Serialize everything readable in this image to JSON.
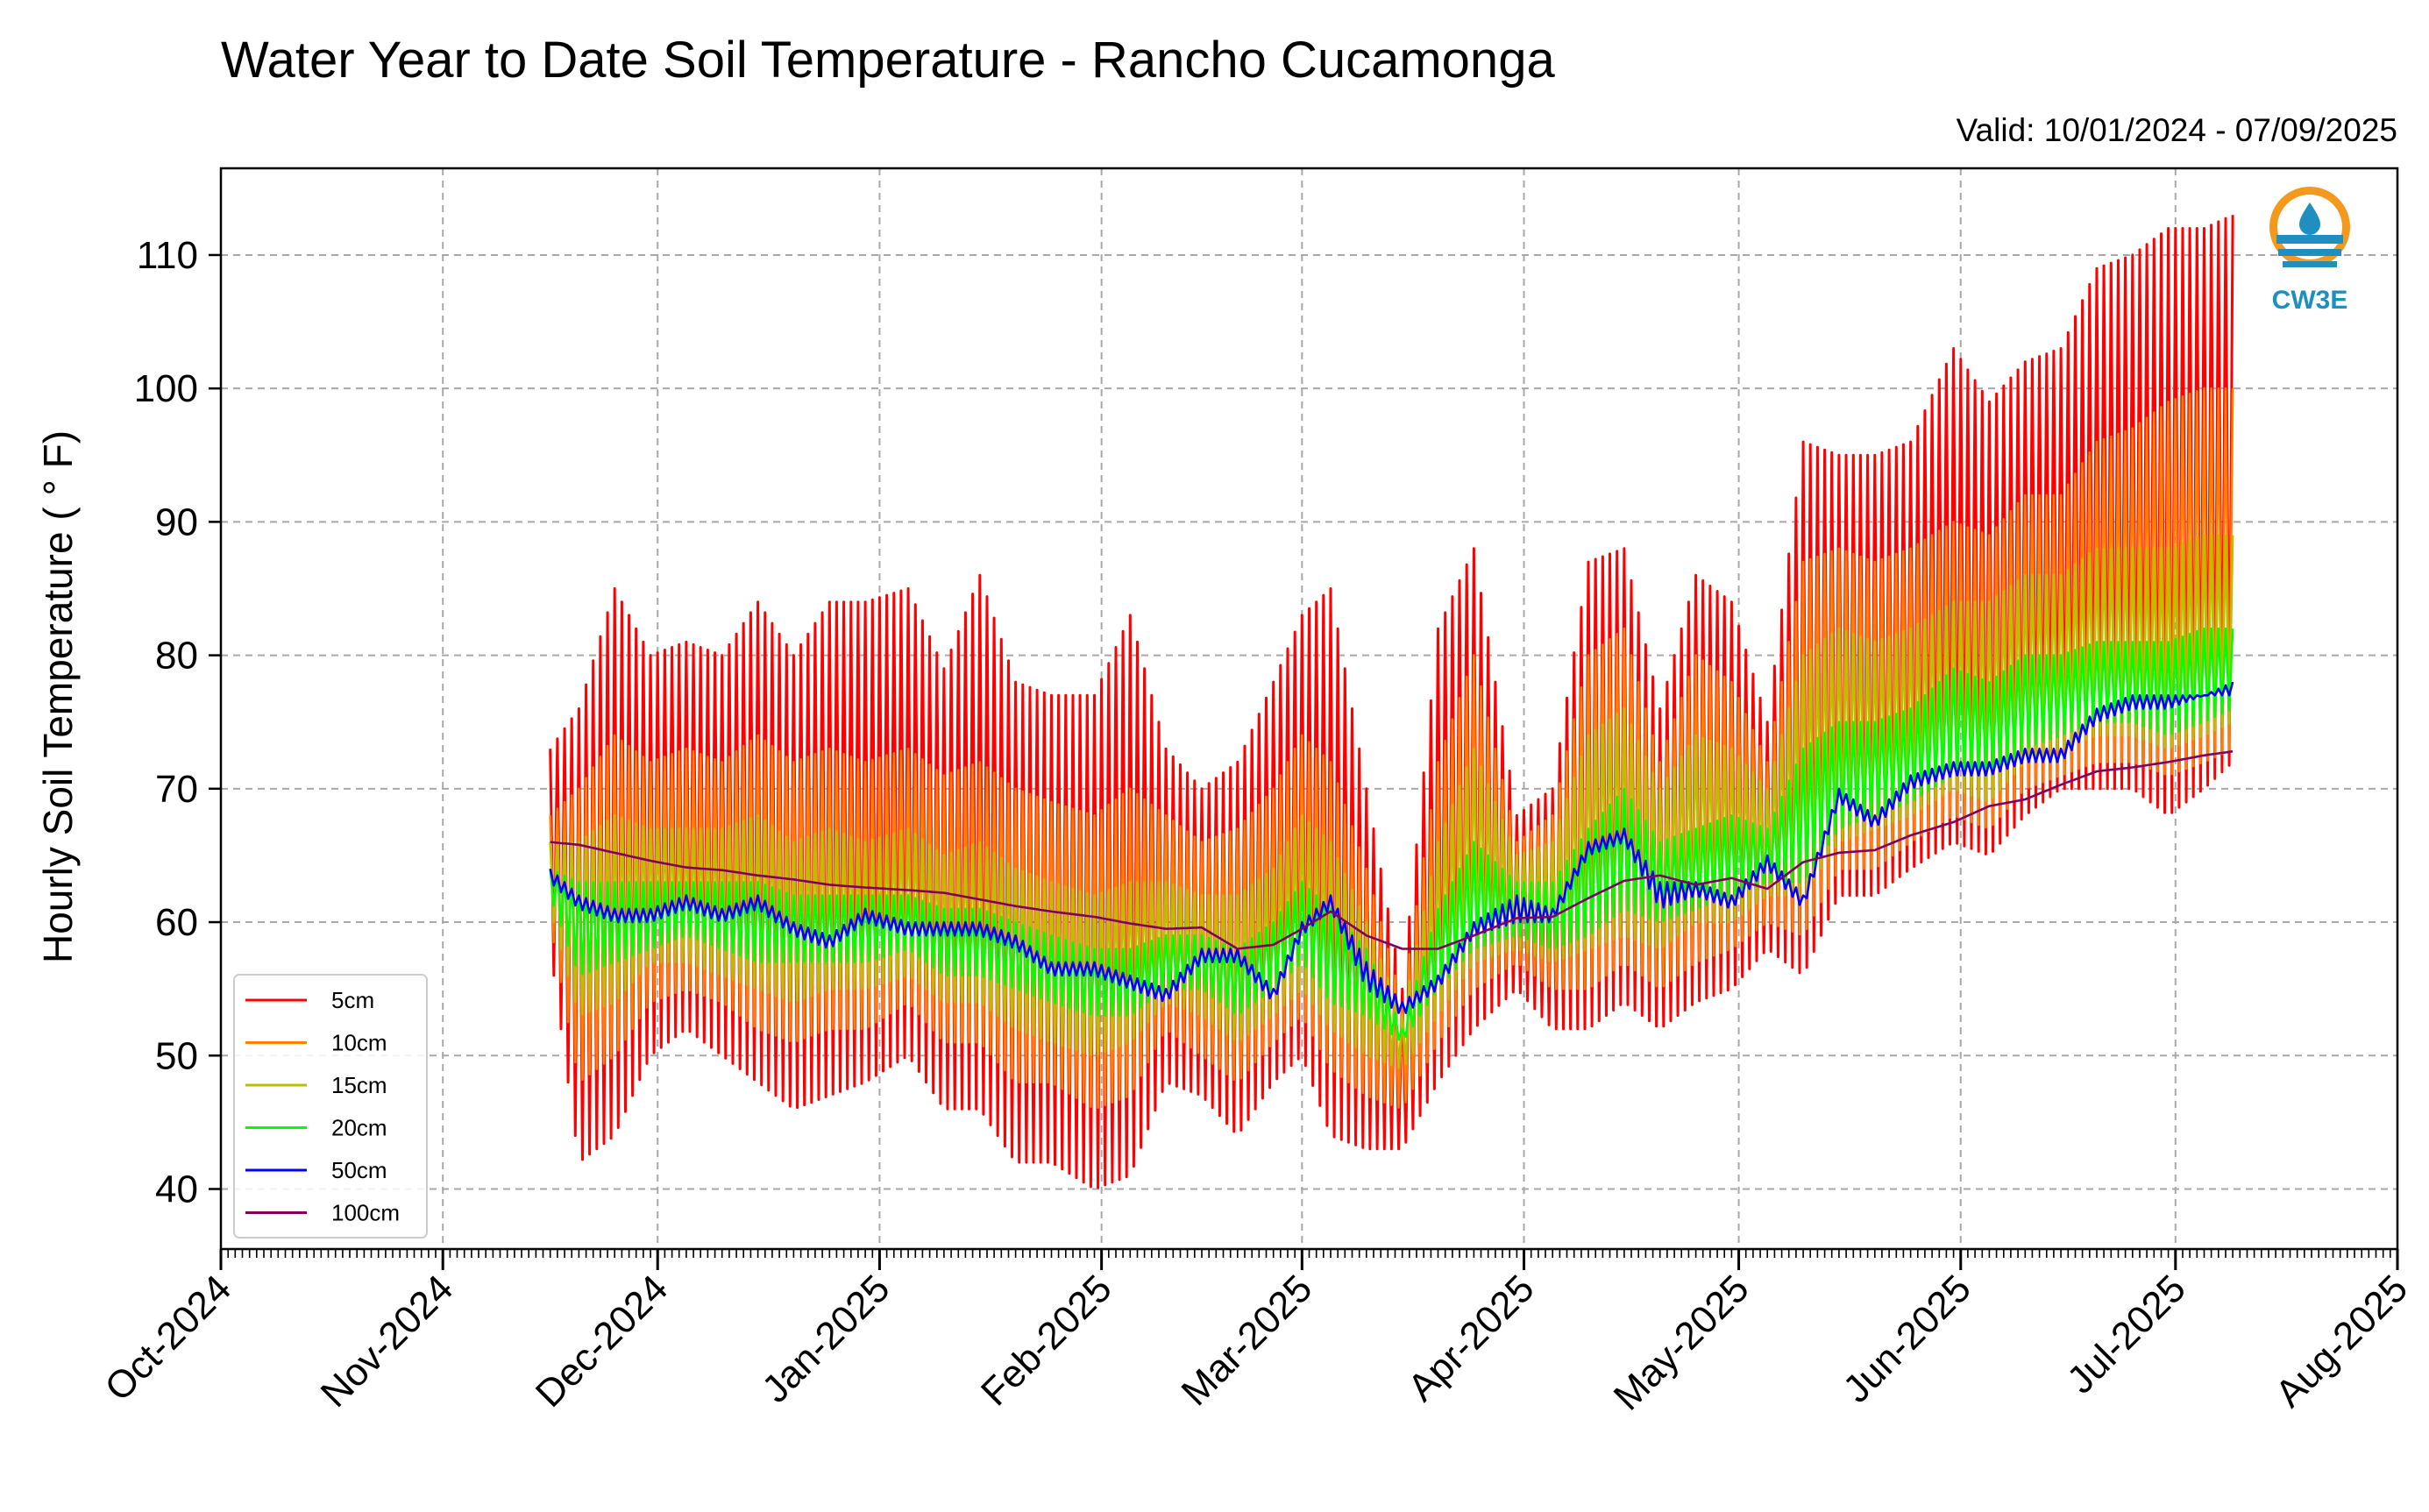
{
  "chart_data": {
    "type": "line",
    "title": "Water Year to Date Soil Temperature - Rancho Cucamonga",
    "valid_text": "Valid: 10/01/2024 - 07/09/2025",
    "ylabel": "Hourly Soil Temperature ( ° F)",
    "xlabel": "",
    "xlim": [
      "2024-10-01",
      "2025-08-01"
    ],
    "ylim": [
      35.5,
      116.5
    ],
    "y_ticks": [
      40,
      50,
      60,
      70,
      80,
      90,
      100,
      110
    ],
    "x_ticks": [
      {
        "date": "2024-10-01",
        "label": "Oct-2024"
      },
      {
        "date": "2024-11-01",
        "label": "Nov-2024"
      },
      {
        "date": "2024-12-01",
        "label": "Dec-2024"
      },
      {
        "date": "2025-01-01",
        "label": "Jan-2025"
      },
      {
        "date": "2025-02-01",
        "label": "Feb-2025"
      },
      {
        "date": "2025-03-01",
        "label": "Mar-2025"
      },
      {
        "date": "2025-04-01",
        "label": "Apr-2025"
      },
      {
        "date": "2025-05-01",
        "label": "May-2025"
      },
      {
        "date": "2025-06-01",
        "label": "Jun-2025"
      },
      {
        "date": "2025-07-01",
        "label": "Jul-2025"
      },
      {
        "date": "2025-08-01",
        "label": "Aug-2025"
      }
    ],
    "grid": true,
    "legend_position": "lower-left",
    "series_style": "daily max/min envelope (hourly oscillation drawn as zig-zag)",
    "series": [
      {
        "name": "5cm",
        "color": "#ff0000",
        "dates": [
          "2024-11-16",
          "2024-11-20",
          "2024-11-25",
          "2024-11-30",
          "2024-12-05",
          "2024-12-10",
          "2024-12-15",
          "2024-12-20",
          "2024-12-25",
          "2024-12-30",
          "2025-01-05",
          "2025-01-10",
          "2025-01-15",
          "2025-01-20",
          "2025-01-25",
          "2025-01-31",
          "2025-02-05",
          "2025-02-10",
          "2025-02-15",
          "2025-02-20",
          "2025-02-25",
          "2025-03-01",
          "2025-03-05",
          "2025-03-10",
          "2025-03-15",
          "2025-03-20",
          "2025-03-25",
          "2025-03-31",
          "2025-04-05",
          "2025-04-10",
          "2025-04-15",
          "2025-04-20",
          "2025-04-25",
          "2025-04-30",
          "2025-05-05",
          "2025-05-10",
          "2025-05-15",
          "2025-05-20",
          "2025-05-25",
          "2025-05-31",
          "2025-06-05",
          "2025-06-10",
          "2025-06-15",
          "2025-06-20",
          "2025-06-25",
          "2025-06-30",
          "2025-07-05",
          "2025-07-09"
        ],
        "max": [
          73,
          76,
          85,
          80,
          81,
          80,
          84,
          80,
          84,
          84,
          85,
          79,
          86,
          78,
          77,
          77,
          83,
          73,
          70,
          72,
          78,
          83,
          85,
          70,
          55,
          82,
          88,
          68,
          70,
          87,
          88,
          76,
          86,
          84,
          75,
          96,
          95,
          95,
          96,
          103,
          99,
          102,
          103,
          109,
          110,
          112,
          112,
          113
        ],
        "min": [
          58,
          42,
          44,
          50,
          52,
          50,
          48,
          46,
          47,
          48,
          50,
          46,
          46,
          42,
          42,
          40,
          41,
          48,
          47,
          44,
          48,
          50,
          44,
          43,
          43,
          48,
          52,
          55,
          52,
          52,
          54,
          52,
          54,
          55,
          58,
          56,
          62,
          62,
          64,
          66,
          65,
          68,
          70,
          70,
          70,
          68,
          70,
          72
        ]
      },
      {
        "name": "10cm",
        "color": "#ff8000",
        "dates": [
          "2024-11-16",
          "2024-11-20",
          "2024-11-25",
          "2024-11-30",
          "2024-12-05",
          "2024-12-10",
          "2024-12-15",
          "2024-12-20",
          "2024-12-25",
          "2024-12-30",
          "2025-01-05",
          "2025-01-10",
          "2025-01-15",
          "2025-01-20",
          "2025-01-25",
          "2025-01-31",
          "2025-02-05",
          "2025-02-10",
          "2025-02-15",
          "2025-02-20",
          "2025-02-25",
          "2025-03-01",
          "2025-03-05",
          "2025-03-10",
          "2025-03-15",
          "2025-03-20",
          "2025-03-25",
          "2025-03-31",
          "2025-04-05",
          "2025-04-10",
          "2025-04-15",
          "2025-04-20",
          "2025-04-25",
          "2025-04-30",
          "2025-05-05",
          "2025-05-10",
          "2025-05-15",
          "2025-05-20",
          "2025-05-25",
          "2025-05-31",
          "2025-06-05",
          "2025-06-10",
          "2025-06-15",
          "2025-06-20",
          "2025-06-25",
          "2025-06-30",
          "2025-07-05",
          "2025-07-09"
        ],
        "max": [
          68,
          70,
          74,
          72,
          73,
          72,
          74,
          72,
          73,
          72,
          73,
          71,
          72,
          70,
          69,
          68,
          70,
          68,
          66,
          67,
          70,
          74,
          72,
          64,
          54,
          72,
          80,
          66,
          68,
          80,
          82,
          72,
          80,
          78,
          72,
          87,
          88,
          87,
          88,
          90,
          89,
          92,
          92,
          96,
          97,
          99,
          100,
          100
        ],
        "min": [
          60,
          48,
          50,
          54,
          55,
          54,
          52,
          51,
          52,
          52,
          54,
          51,
          51,
          48,
          48,
          46,
          47,
          52,
          50,
          48,
          51,
          53,
          49,
          47,
          46,
          51,
          55,
          57,
          55,
          55,
          57,
          55,
          57,
          58,
          60,
          59,
          64,
          64,
          66,
          68,
          67,
          70,
          71,
          72,
          72,
          71,
          72,
          73
        ]
      },
      {
        "name": "15cm",
        "color": "#b8c000",
        "dates": [
          "2024-11-16",
          "2024-11-20",
          "2024-11-25",
          "2024-11-30",
          "2024-12-05",
          "2024-12-10",
          "2024-12-15",
          "2024-12-20",
          "2024-12-25",
          "2024-12-30",
          "2025-01-05",
          "2025-01-10",
          "2025-01-15",
          "2025-01-20",
          "2025-01-25",
          "2025-01-31",
          "2025-02-05",
          "2025-02-10",
          "2025-02-15",
          "2025-02-20",
          "2025-02-25",
          "2025-03-01",
          "2025-03-05",
          "2025-03-10",
          "2025-03-15",
          "2025-03-20",
          "2025-03-25",
          "2025-03-31",
          "2025-04-05",
          "2025-04-10",
          "2025-04-15",
          "2025-04-20",
          "2025-04-25",
          "2025-04-30",
          "2025-05-05",
          "2025-05-10",
          "2025-05-15",
          "2025-05-20",
          "2025-05-25",
          "2025-05-31",
          "2025-06-05",
          "2025-06-10",
          "2025-06-15",
          "2025-06-20",
          "2025-06-25",
          "2025-06-30",
          "2025-07-05",
          "2025-07-09"
        ],
        "max": [
          66,
          66,
          68,
          67,
          67,
          67,
          68,
          66,
          67,
          66,
          67,
          65,
          66,
          64,
          63,
          62,
          63,
          63,
          62,
          62,
          64,
          68,
          66,
          60,
          53,
          66,
          73,
          65,
          66,
          74,
          76,
          70,
          74,
          73,
          70,
          80,
          82,
          81,
          82,
          84,
          84,
          86,
          86,
          88,
          88,
          88,
          89,
          89
        ],
        "min": [
          61,
          53,
          54,
          57,
          57,
          56,
          55,
          54,
          55,
          55,
          56,
          54,
          54,
          52,
          51,
          50,
          51,
          54,
          53,
          51,
          53,
          55,
          52,
          50,
          49,
          53,
          57,
          58,
          57,
          58,
          59,
          58,
          60,
          60,
          62,
          62,
          66,
          67,
          68,
          70,
          69,
          72,
          73,
          74,
          74,
          73,
          74,
          75
        ]
      },
      {
        "name": "20cm",
        "color": "#00ff00",
        "dates": [
          "2024-11-16",
          "2024-11-20",
          "2024-11-25",
          "2024-11-30",
          "2024-12-05",
          "2024-12-10",
          "2024-12-15",
          "2024-12-20",
          "2024-12-25",
          "2024-12-30",
          "2025-01-05",
          "2025-01-10",
          "2025-01-15",
          "2025-01-20",
          "2025-01-25",
          "2025-01-31",
          "2025-02-05",
          "2025-02-10",
          "2025-02-15",
          "2025-02-20",
          "2025-02-25",
          "2025-03-01",
          "2025-03-05",
          "2025-03-10",
          "2025-03-15",
          "2025-03-20",
          "2025-03-25",
          "2025-03-31",
          "2025-04-05",
          "2025-04-10",
          "2025-04-15",
          "2025-04-20",
          "2025-04-25",
          "2025-04-30",
          "2025-05-05",
          "2025-05-10",
          "2025-05-15",
          "2025-05-20",
          "2025-05-25",
          "2025-05-31",
          "2025-06-05",
          "2025-06-10",
          "2025-06-15",
          "2025-06-20",
          "2025-06-25",
          "2025-06-30",
          "2025-07-05",
          "2025-07-09"
        ],
        "max": [
          64,
          63,
          63,
          63,
          63,
          63,
          63,
          62,
          62,
          62,
          62,
          61,
          61,
          60,
          59,
          58,
          58,
          59,
          59,
          58,
          60,
          63,
          61,
          58,
          52,
          61,
          66,
          63,
          63,
          67,
          70,
          66,
          67,
          68,
          67,
          73,
          75,
          75,
          76,
          79,
          78,
          80,
          80,
          81,
          81,
          81,
          82,
          82
        ],
        "min": [
          62,
          56,
          57,
          58,
          59,
          58,
          57,
          57,
          57,
          57,
          58,
          56,
          56,
          55,
          54,
          53,
          53,
          55,
          55,
          53,
          55,
          57,
          54,
          53,
          51,
          55,
          58,
          59,
          58,
          59,
          61,
          60,
          61,
          62,
          63,
          63,
          67,
          68,
          69,
          71,
          71,
          73,
          74,
          75,
          75,
          74,
          75,
          76
        ]
      },
      {
        "name": "50cm",
        "color": "#0000ff",
        "dates": [
          "2024-11-16",
          "2024-11-20",
          "2024-11-25",
          "2024-11-30",
          "2024-12-05",
          "2024-12-10",
          "2024-12-15",
          "2024-12-20",
          "2024-12-25",
          "2024-12-30",
          "2025-01-05",
          "2025-01-10",
          "2025-01-15",
          "2025-01-20",
          "2025-01-25",
          "2025-01-31",
          "2025-02-05",
          "2025-02-10",
          "2025-02-15",
          "2025-02-20",
          "2025-02-25",
          "2025-03-01",
          "2025-03-05",
          "2025-03-10",
          "2025-03-15",
          "2025-03-20",
          "2025-03-25",
          "2025-03-31",
          "2025-04-05",
          "2025-04-10",
          "2025-04-15",
          "2025-04-20",
          "2025-04-25",
          "2025-04-30",
          "2025-05-05",
          "2025-05-10",
          "2025-05-15",
          "2025-05-20",
          "2025-05-25",
          "2025-05-31",
          "2025-06-05",
          "2025-06-10",
          "2025-06-15",
          "2025-06-20",
          "2025-06-25",
          "2025-06-30",
          "2025-07-05",
          "2025-07-09"
        ],
        "max": [
          64,
          62,
          61,
          61,
          62,
          61,
          62,
          60,
          59,
          61,
          60,
          60,
          60,
          59,
          57,
          57,
          56,
          55,
          58,
          58,
          55,
          60,
          62,
          57,
          54,
          56,
          60,
          62,
          61,
          66,
          67,
          63,
          63,
          62,
          65,
          62,
          70,
          68,
          71,
          72,
          72,
          73,
          73,
          76,
          77,
          77,
          77,
          78
        ],
        "min": [
          63,
          61,
          60,
          60,
          61,
          60,
          61,
          59,
          58,
          60,
          59,
          59,
          59,
          58,
          56,
          56,
          55,
          54,
          57,
          57,
          54,
          59,
          61,
          55,
          53,
          55,
          59,
          60,
          60,
          65,
          66,
          61,
          62,
          61,
          64,
          61,
          69,
          67,
          70,
          71,
          71,
          72,
          72,
          75,
          76,
          76,
          77,
          77
        ]
      },
      {
        "name": "100cm",
        "color": "#800060",
        "dates": [
          "2024-11-16",
          "2024-11-20",
          "2024-11-25",
          "2024-11-30",
          "2024-12-05",
          "2024-12-10",
          "2024-12-15",
          "2024-12-20",
          "2024-12-25",
          "2024-12-30",
          "2025-01-05",
          "2025-01-10",
          "2025-01-15",
          "2025-01-20",
          "2025-01-25",
          "2025-01-31",
          "2025-02-05",
          "2025-02-10",
          "2025-02-15",
          "2025-02-20",
          "2025-02-25",
          "2025-03-01",
          "2025-03-05",
          "2025-03-10",
          "2025-03-15",
          "2025-03-20",
          "2025-03-25",
          "2025-03-31",
          "2025-04-05",
          "2025-04-10",
          "2025-04-15",
          "2025-04-20",
          "2025-04-25",
          "2025-04-30",
          "2025-05-05",
          "2025-05-10",
          "2025-05-15",
          "2025-05-20",
          "2025-05-25",
          "2025-05-31",
          "2025-06-05",
          "2025-06-10",
          "2025-06-15",
          "2025-06-20",
          "2025-06-25",
          "2025-06-30",
          "2025-07-05",
          "2025-07-09"
        ],
        "max": [
          66,
          65.8,
          65.2,
          64.6,
          64.1,
          63.9,
          63.5,
          63.2,
          62.8,
          62.6,
          62.4,
          62.2,
          61.7,
          61.2,
          60.8,
          60.4,
          59.9,
          59.5,
          59.6,
          58.0,
          58.3,
          59.5,
          60.8,
          59.0,
          58.0,
          58.0,
          59.0,
          60.3,
          60.4,
          61.8,
          63.1,
          63.5,
          62.8,
          63.3,
          62.5,
          64.5,
          65.2,
          65.4,
          66.5,
          67.5,
          68.7,
          69.2,
          70.3,
          71.3,
          71.6,
          72.0,
          72.5,
          72.8
        ],
        "min": [
          66,
          65.8,
          65.2,
          64.6,
          64.1,
          63.9,
          63.5,
          63.2,
          62.8,
          62.6,
          62.4,
          62.2,
          61.7,
          61.2,
          60.8,
          60.4,
          59.9,
          59.5,
          59.6,
          58.0,
          58.3,
          59.5,
          60.8,
          59.0,
          58.0,
          58.0,
          59.0,
          60.3,
          60.4,
          61.8,
          63.1,
          63.5,
          62.8,
          63.3,
          62.5,
          64.5,
          65.2,
          65.4,
          66.5,
          67.5,
          68.7,
          69.2,
          70.3,
          71.3,
          71.6,
          72.0,
          72.5,
          72.8
        ]
      }
    ]
  },
  "logo": {
    "text": "CW3E",
    "color": "#1f8fbf",
    "accent": "#f39a1e",
    "icon": "water-drop-icon"
  }
}
